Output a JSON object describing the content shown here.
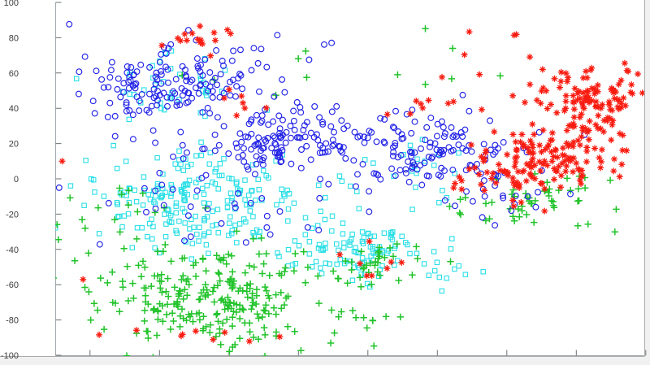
{
  "figure": {
    "background": "#ffffff",
    "outer_background": "#f1f1f1",
    "frame_color": "#ababab"
  },
  "chart_data": {
    "type": "scatter",
    "title": "",
    "xlabel": "",
    "ylabel": "",
    "grid": false,
    "legend": "none",
    "axes": {
      "xlim": [
        -90,
        80.5
      ],
      "ylim": [
        -100,
        100
      ],
      "x_ticks": [
        -80,
        -60,
        -40,
        -20,
        0,
        20,
        40,
        60,
        80
      ],
      "x_tick_labels_visible": false,
      "y_ticks": [
        100,
        80,
        60,
        40,
        20,
        0,
        -20,
        -40,
        -60,
        -80,
        -100
      ],
      "y_tick_labels_visible": true,
      "axis_line_color": "#a2a8ac",
      "tick_color": "#6b7075",
      "tick_label_color": "#3c3c3c"
    },
    "seed": 42,
    "series": [
      {
        "name": "class-cyan-squares",
        "marker": "square",
        "color": "#2adfe6",
        "clusters": [
          {
            "cx": -50,
            "cy": -14,
            "sx": 17,
            "sy": 15,
            "n": 215
          },
          {
            "cx": -5,
            "cy": -41,
            "sx": 12,
            "sy": 9,
            "n": 105
          },
          {
            "cx": -59,
            "cy": 53,
            "sx": 13,
            "sy": 9,
            "n": 40
          },
          {
            "cx": 11,
            "cy": 5,
            "sx": 12,
            "sy": 9,
            "n": 25
          },
          {
            "cx": 22,
            "cy": -53,
            "sx": 5,
            "sy": 5,
            "n": 10
          }
        ],
        "points": []
      },
      {
        "name": "class-green-plus",
        "marker": "plus",
        "color": "#22c32b",
        "clusters": [
          {
            "cx": -46,
            "cy": -69,
            "sx": 16,
            "sy": 13,
            "n": 250
          },
          {
            "cx": -1,
            "cy": -46,
            "sx": 10,
            "sy": 8,
            "n": 40
          },
          {
            "cx": 45,
            "cy": -14,
            "sx": 10,
            "sy": 8,
            "n": 40
          },
          {
            "cx": -10,
            "cy": 62,
            "sx": 28,
            "sy": 9,
            "n": 12
          },
          {
            "cx": -70,
            "cy": -25,
            "sx": 11,
            "sy": 14,
            "n": 22
          },
          {
            "cx": 62,
            "cy": -11,
            "sx": 6,
            "sy": 7,
            "n": 14
          },
          {
            "cx": -3,
            "cy": -80,
            "sx": 7,
            "sy": 5,
            "n": 12
          }
        ],
        "points": []
      },
      {
        "name": "class-blue-circles",
        "marker": "circle",
        "color": "#2323e5",
        "clusters": [
          {
            "cx": -56,
            "cy": 51,
            "sx": 13,
            "sy": 11,
            "n": 150
          },
          {
            "cx": -24,
            "cy": 21,
            "sx": 12,
            "sy": 10,
            "n": 130
          },
          {
            "cx": 16,
            "cy": 16,
            "sx": 13,
            "sy": 10,
            "n": 125
          },
          {
            "cx": -45,
            "cy": -14,
            "sx": 17,
            "sy": 11,
            "n": 35
          },
          {
            "cx": 39,
            "cy": -9,
            "sx": 9,
            "sy": 8,
            "n": 25
          },
          {
            "cx": -35,
            "cy": 67,
            "sx": 15,
            "sy": 7,
            "n": 15
          }
        ],
        "points": []
      },
      {
        "name": "class-red-asterisks",
        "marker": "asterisk",
        "color": "#f81b10",
        "clusters": [
          {
            "cx": 66,
            "cy": 44,
            "sx": 8,
            "sy": 10,
            "n": 120
          },
          {
            "cx": 55,
            "cy": 12,
            "sx": 9,
            "sy": 10,
            "n": 110
          },
          {
            "cx": 40,
            "cy": 3,
            "sx": 8,
            "sy": 9,
            "n": 45
          },
          {
            "cx": -50,
            "cy": 79,
            "sx": 5,
            "sy": 4,
            "n": 16
          },
          {
            "cx": 23,
            "cy": 42,
            "sx": 12,
            "sy": 7,
            "n": 12
          },
          {
            "cx": -39,
            "cy": 42,
            "sx": 5,
            "sy": 5,
            "n": 7
          },
          {
            "cx": -52,
            "cy": -88,
            "sx": 10,
            "sy": 4,
            "n": 9
          },
          {
            "cx": 6,
            "cy": -50,
            "sx": 9,
            "sy": 7,
            "n": 8
          },
          {
            "cx": 39,
            "cy": 76,
            "sx": 7,
            "sy": 6,
            "n": 6
          }
        ],
        "points": [
          [
            -88,
            10
          ],
          [
            -82,
            -57
          ]
        ]
      }
    ]
  }
}
